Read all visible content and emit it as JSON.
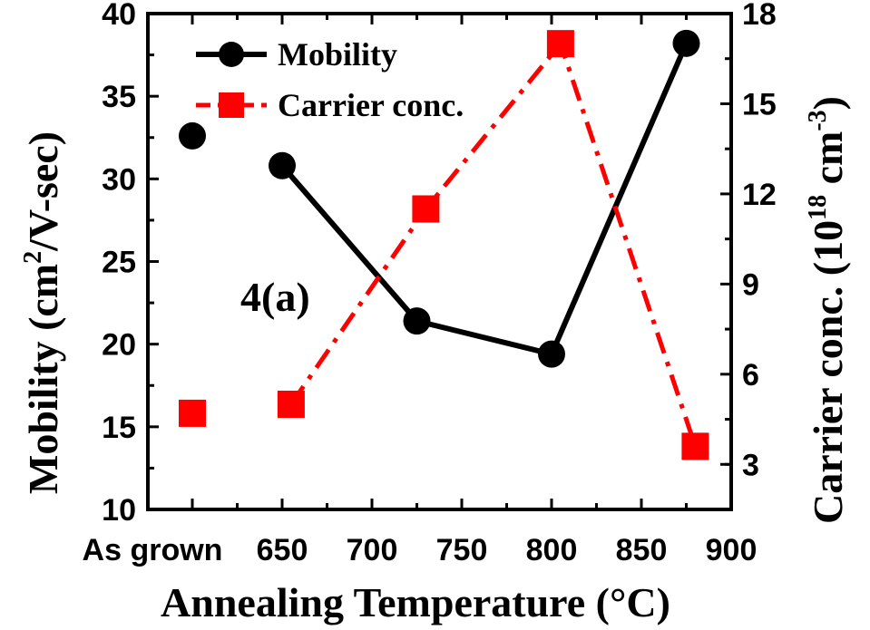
{
  "chart_data": {
    "type": "line",
    "panel_label": "4(a)",
    "xlabel": "Annealing Temperature (°C)",
    "x_ticks": [
      "As grown",
      "650",
      "700",
      "750",
      "800",
      "850",
      "900"
    ],
    "y_left": {
      "label_pre": "Mobility (cm",
      "label_sup": "2",
      "label_post": "/V-sec)",
      "ylim": [
        10,
        40
      ],
      "ticks": [
        "10",
        "15",
        "20",
        "25",
        "30",
        "35",
        "40"
      ]
    },
    "y_right": {
      "label_pre": "Carrier conc. (10",
      "label_sup1": "18",
      "label_mid": " cm",
      "label_sup2": "-3",
      "label_post": ")",
      "ylim": [
        1.5,
        18
      ],
      "ticks": [
        "3",
        "6",
        "9",
        "12",
        "15",
        "18"
      ]
    },
    "series": [
      {
        "name": "Mobility",
        "axis": "left",
        "color": "#000000",
        "marker": "circle",
        "linestyle": "solid",
        "x": [
          "As grown",
          650,
          725,
          800,
          875
        ],
        "values": [
          32.6,
          30.8,
          21.4,
          19.4,
          38.2
        ]
      },
      {
        "name": "Carrier conc.",
        "axis": "right",
        "color": "#ff0000",
        "marker": "square",
        "linestyle": "dashdot",
        "x": [
          "As grown",
          655,
          730,
          805,
          880
        ],
        "values": [
          4.7,
          5.0,
          11.5,
          17.0,
          3.6
        ]
      }
    ]
  }
}
